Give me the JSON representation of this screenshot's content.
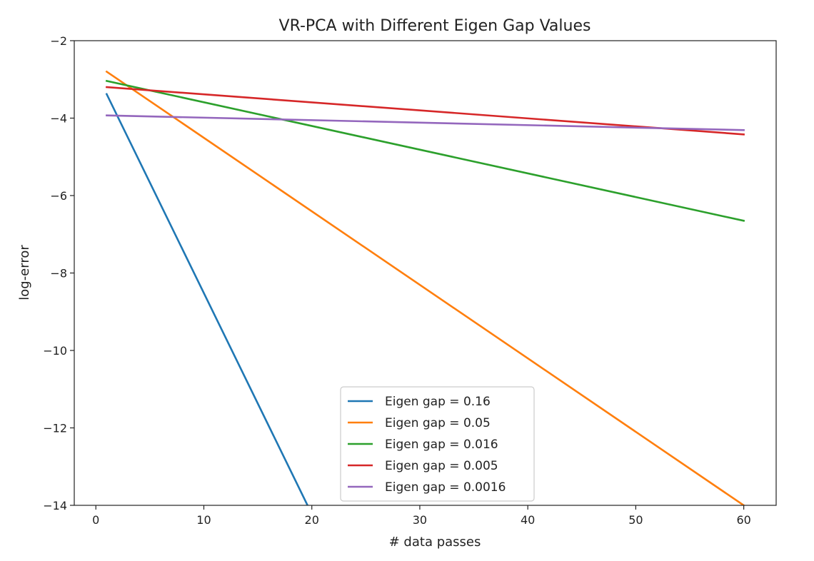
{
  "chart_data": {
    "type": "line",
    "title": "VR-PCA with Different Eigen Gap Values",
    "xlabel": "# data passes",
    "ylabel": "log-error",
    "xlim": [
      -2.0,
      63.0
    ],
    "ylim": [
      -14,
      -2
    ],
    "xticks": [
      0,
      10,
      20,
      30,
      40,
      50,
      60
    ],
    "yticks": [
      -14,
      -12,
      -10,
      -8,
      -6,
      -4,
      -2
    ],
    "legend_placement": "lower-center",
    "grid": false,
    "series": [
      {
        "name": "Eigen gap = 0.16",
        "color": "#1f77b4",
        "x": [
          1,
          19.6
        ],
        "y": [
          -3.38,
          -14.0
        ]
      },
      {
        "name": "Eigen gap = 0.05",
        "color": "#ff7f0e",
        "x": [
          1,
          60
        ],
        "y": [
          -2.8,
          -14.0
        ]
      },
      {
        "name": "Eigen gap = 0.016",
        "color": "#2ca02c",
        "x": [
          1,
          60
        ],
        "y": [
          -3.04,
          -6.65
        ]
      },
      {
        "name": "Eigen gap = 0.005",
        "color": "#d62728",
        "x": [
          1,
          60
        ],
        "y": [
          -3.2,
          -4.42
        ]
      },
      {
        "name": "Eigen gap = 0.0016",
        "color": "#9467bd",
        "x": [
          1,
          60
        ],
        "y": [
          -3.93,
          -4.31
        ]
      }
    ]
  }
}
